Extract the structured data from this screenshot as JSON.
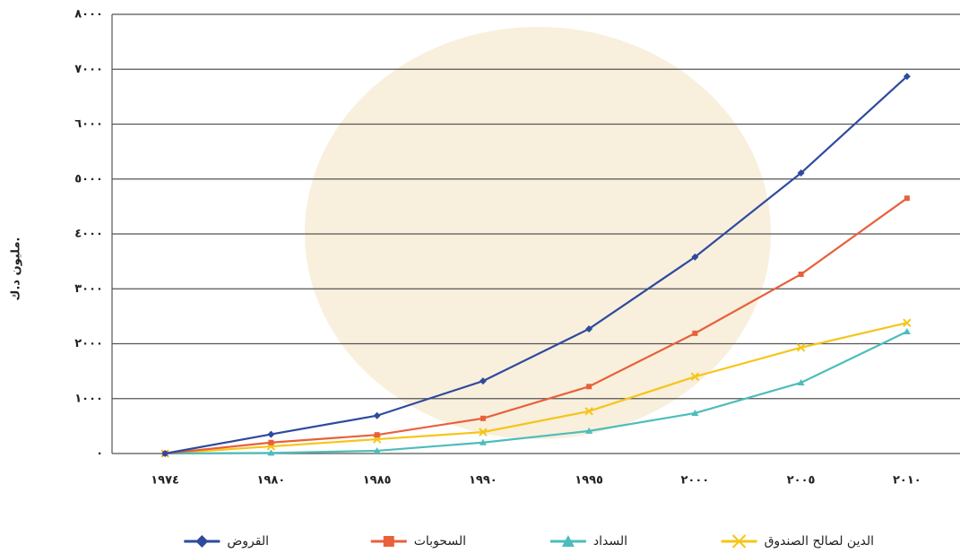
{
  "chart_data": {
    "type": "line",
    "y_label": "مليون د.ك.",
    "categories": [
      "١٩٧٤",
      "١٩٨٠",
      "١٩٨٥",
      "١٩٩٠",
      "١٩٩٥",
      "٢٠٠٠",
      "٢٠٠٥",
      "٢٠١٠"
    ],
    "series": [
      {
        "name": "القروض",
        "color": "#2e4a9e",
        "marker": "diamond",
        "values": [
          0,
          350,
          690,
          1320,
          2270,
          3580,
          5110,
          6870
        ]
      },
      {
        "name": "السحوبات",
        "color": "#e8603c",
        "marker": "square",
        "values": [
          0,
          200,
          340,
          640,
          1220,
          2190,
          3265,
          4650
        ]
      },
      {
        "name": "السداد",
        "color": "#4dbcbc",
        "marker": "triangle",
        "values": [
          0,
          10,
          50,
          200,
          410,
          735,
          1290,
          2220
        ]
      },
      {
        "name": "الدين لصالح الصندوق",
        "color": "#f5c518",
        "marker": "x",
        "values": [
          0,
          130,
          260,
          390,
          770,
          1400,
          1930,
          2380
        ]
      }
    ],
    "ylim": [
      0,
      8000
    ],
    "yticks": [
      {
        "value": 0,
        "label": "٠"
      },
      {
        "value": 1000,
        "label": "١٠٠٠"
      },
      {
        "value": 2000,
        "label": "٢٠٠٠"
      },
      {
        "value": 3000,
        "label": "٣٠٠٠"
      },
      {
        "value": 4000,
        "label": "٤٠٠٠"
      },
      {
        "value": 5000,
        "label": "٥٠٠٠"
      },
      {
        "value": 6000,
        "label": "٦٠٠٠"
      },
      {
        "value": 7000,
        "label": "٧٠٠٠"
      },
      {
        "value": 8000,
        "label": "٨٠٠٠"
      }
    ],
    "grid": true,
    "legend": "bottom"
  }
}
